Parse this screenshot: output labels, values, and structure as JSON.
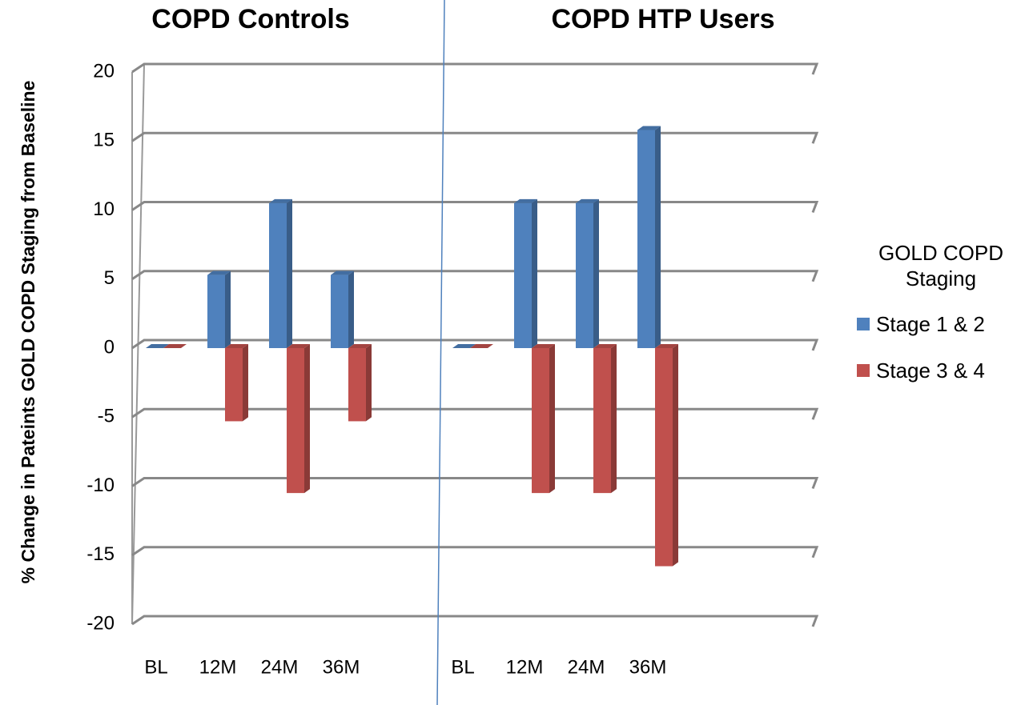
{
  "chart_data": {
    "type": "bar3d",
    "ylabel": "% Change in Pateints GOLD COPD Staging from Baseline",
    "legend_title": "GOLD COPD Staging",
    "groups": [
      {
        "title": "COPD Controls"
      },
      {
        "title": "COPD HTP Users"
      }
    ],
    "categories": [
      "BL",
      "12M",
      "24M",
      "36M",
      "BL",
      "12M",
      "24M",
      "36M"
    ],
    "series": [
      {
        "name": "Stage 1 & 2",
        "color": "#4f81bd",
        "values": [
          0,
          5.3,
          10.5,
          5.3,
          0,
          10.5,
          10.5,
          15.8
        ]
      },
      {
        "name": "Stage 3 & 4",
        "color": "#c0504d",
        "values": [
          0,
          -5.3,
          -10.5,
          -5.3,
          0,
          -10.5,
          -10.5,
          -15.8
        ]
      }
    ],
    "ylim": [
      -20,
      20
    ],
    "yticks": [
      -20,
      -15,
      -10,
      -5,
      0,
      5,
      10,
      15,
      20
    ],
    "grid": true,
    "legend": "right"
  }
}
